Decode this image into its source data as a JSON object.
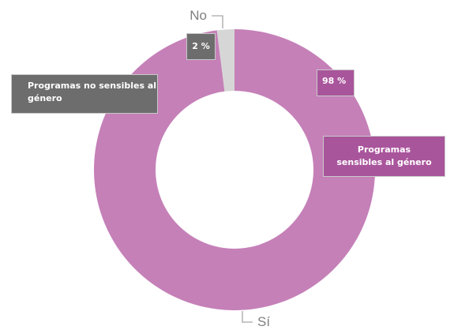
{
  "chart_data": {
    "type": "pie",
    "donut": true,
    "categories": [
      "Sí",
      "No"
    ],
    "values": [
      98,
      2
    ],
    "colors": [
      "#c580b8",
      "#d6d6d6"
    ],
    "data_labels": [
      "98 %",
      "2 %"
    ],
    "annotations": {
      "no": "Programas no sensibles al género",
      "si": "Programas sensibles al género"
    },
    "title": "",
    "legend": "none"
  }
}
